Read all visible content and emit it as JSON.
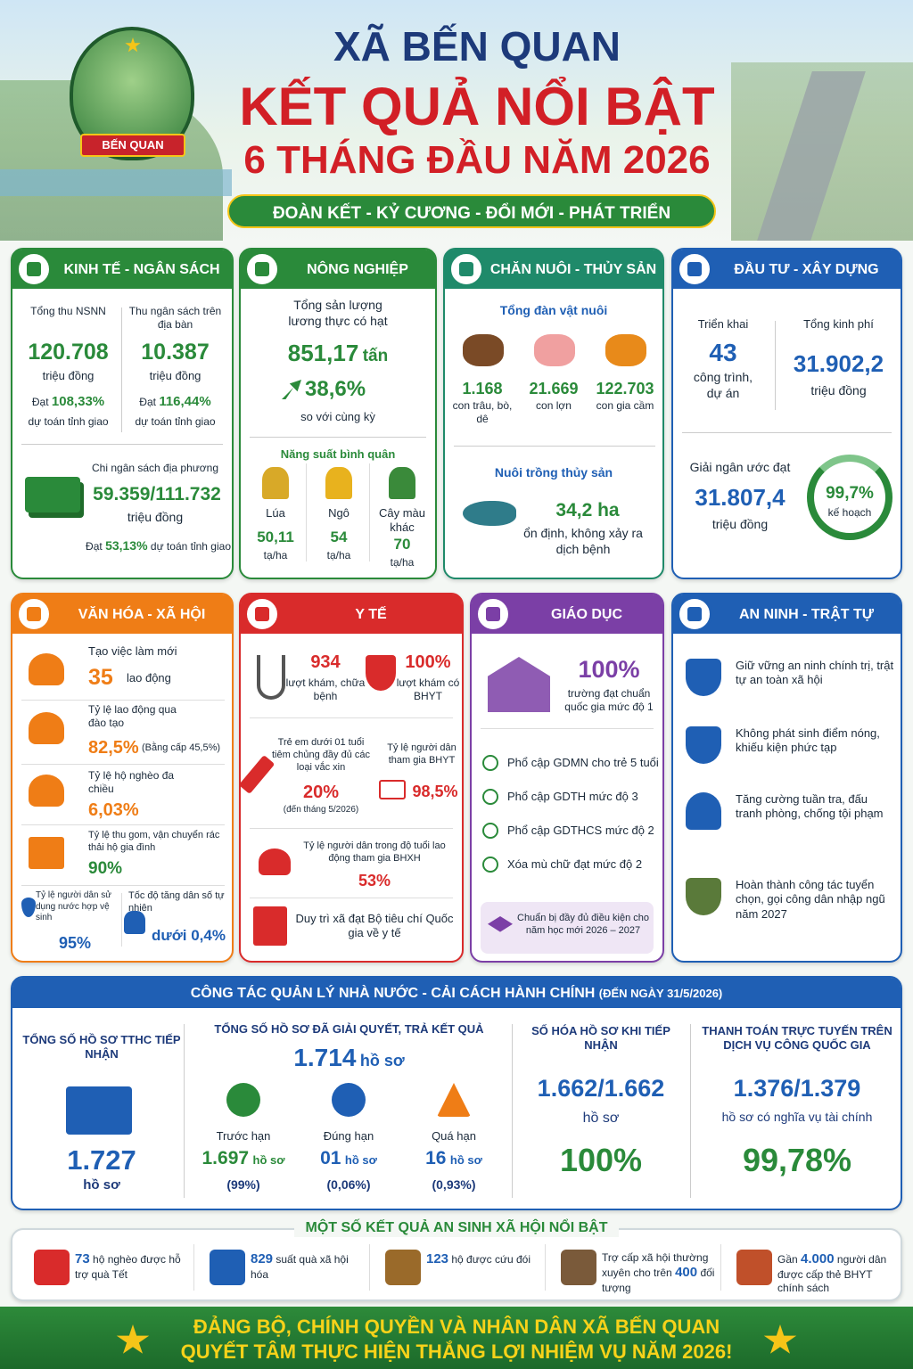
{
  "header": {
    "place": "XÃ BẾN QUAN",
    "title": "KẾT QUẢ NỔI BẬT",
    "subtitle": "6 THÁNG ĐẦU NĂM 2026",
    "slogan": "ĐOÀN KẾT - KỶ CƯƠNG - ĐỔI MỚI - PHÁT TRIỂN",
    "logo_text": "BẾN QUAN"
  },
  "kinh_te": {
    "title": "KINH TẾ - NGÂN SÁCH",
    "items": [
      {
        "label": "Tổng thu NSNN",
        "value": "120.708",
        "unit": "triệu đồng",
        "rate_prefix": "Đạt",
        "rate": "108,33%",
        "rate_note": "dự toán tỉnh giao"
      },
      {
        "label": "Thu ngân sách trên địa bàn",
        "value": "10.387",
        "unit": "triệu đồng",
        "rate_prefix": "Đạt",
        "rate": "116,44%",
        "rate_note": "dự toán tỉnh giao"
      },
      {
        "label": "Chi ngân sách địa phương",
        "value": "59.359/111.732",
        "unit": "triệu đồng",
        "rate_prefix": "Đạt",
        "rate": "53,13%",
        "rate_note": "dự toán tỉnh giao"
      }
    ]
  },
  "nong_nghiep": {
    "title": "NÔNG NGHIỆP",
    "label": "Tổng sản lượng lương thực có hạt",
    "value": "851,17",
    "unit": "tấn",
    "growth": "38,6%",
    "growth_note": "so với cùng kỳ",
    "yield_title": "Năng suất bình quân",
    "crops": [
      {
        "name": "Lúa",
        "value": "50,11",
        "unit": "tạ/ha"
      },
      {
        "name": "Ngô",
        "value": "54",
        "unit": "tạ/ha"
      },
      {
        "name": "Cây màu khác",
        "value": "70",
        "unit": "tạ/ha"
      }
    ]
  },
  "chan_nuoi": {
    "title": "CHĂN NUÔI - THỦY SẢN",
    "livestock_title": "Tổng đàn vật nuôi",
    "animals": [
      {
        "value": "1.168",
        "unit": "con trâu, bò, dê"
      },
      {
        "value": "21.669",
        "unit": "con lợn"
      },
      {
        "value": "122.703",
        "unit": "con gia cầm"
      }
    ],
    "aqua_title": "Nuôi trồng thủy sản",
    "aqua_value": "34,2 ha",
    "aqua_note": "ổn định, không xảy ra dịch bệnh"
  },
  "dau_tu": {
    "title": "ĐẦU TƯ - XÂY DỰNG",
    "projects_label": "Triển khai",
    "projects_value": "43",
    "projects_unit": "công trình, dự án",
    "cost_label": "Tổng kinh phí",
    "cost_value": "31.902,2",
    "cost_unit": "triệu đồng",
    "disburse_label": "Giải ngân ước đạt",
    "disburse_value": "31.807,4",
    "disburse_unit": "triệu đồng",
    "rate": "99,7%",
    "rate_note": "kế hoạch"
  },
  "van_hoa": {
    "title": "VĂN HÓA - XÃ HỘI",
    "items": [
      {
        "label": "Tạo việc làm mới",
        "value": "35",
        "note": "lao động"
      },
      {
        "label": "Tỷ lệ lao động qua đào tạo",
        "value": "82,5%",
        "note": "(Bằng cấp 45,5%)"
      },
      {
        "label": "Tỷ lệ hộ nghèo đa chiều",
        "value": "6,03%"
      },
      {
        "label": "Tỷ lệ thu gom, vận chuyển rác thải hộ gia đình",
        "value": "90%"
      },
      {
        "label": "Tỷ lệ người dân sử dụng nước hợp vệ sinh",
        "value": "95%"
      },
      {
        "label": "Tốc độ tăng dân số tự nhiên",
        "value": "dưới 0,4%"
      }
    ]
  },
  "y_te": {
    "title": "Y TẾ",
    "items": [
      {
        "value": "934",
        "note": "lượt khám, chữa bệnh"
      },
      {
        "value": "100%",
        "note": "lượt khám có BHYT"
      },
      {
        "label": "Trẻ em dưới 01 tuổi tiêm chủng đầy đủ các loại vắc xin",
        "value": "20%",
        "note": "(đến tháng 5/2026)"
      },
      {
        "label": "Tỷ lệ người dân tham gia BHYT",
        "value": "98,5%"
      },
      {
        "label": "Tỷ lệ người dân trong độ tuổi lao động tham gia BHXH",
        "value": "53%"
      }
    ],
    "maintain": "Duy trì xã đạt Bộ tiêu chí Quốc gia về y tế"
  },
  "giao_duc": {
    "title": "GIÁO DỤC",
    "value": "100%",
    "note": "trường đạt chuẩn quốc gia mức độ 1",
    "checks": [
      "Phổ cập GDMN cho trẻ 5 tuổi",
      "Phổ cập GDTH mức độ 3",
      "Phổ cập GDTHCS mức độ 2",
      "Xóa mù chữ đạt mức độ 2"
    ],
    "footer": "Chuẩn bị đầy đủ điều kiện cho năm học mới 2026 – 2027"
  },
  "an_ninh": {
    "title": "AN NINH - TRẬT TỰ",
    "items": [
      "Giữ vững an ninh chính trị, trật tự an toàn xã hội",
      "Không phát sinh điểm nóng, khiếu kiện phức tạp",
      "Tăng cường tuần tra, đấu tranh phòng, chống tội phạm",
      "Hoàn thành công tác tuyển chọn, gọi công dân nhập ngũ năm 2027"
    ]
  },
  "qlnn": {
    "title": "CÔNG TÁC QUẢN LÝ NHÀ NƯỚC - CẢI CÁCH HÀNH CHÍNH",
    "date_note": "(ĐẾN NGÀY 31/5/2026)",
    "received": {
      "label": "TỔNG SỐ HỒ SƠ TTHC TIẾP NHẬN",
      "value": "1.727",
      "unit": "hồ sơ"
    },
    "resolved": {
      "label": "TỔNG SỐ HỒ SƠ ĐÃ GIẢI QUYẾT, TRẢ KẾT QUẢ",
      "value": "1.714",
      "unit": "hồ sơ",
      "breakdown": [
        {
          "label": "Trước hạn",
          "value": "1.697",
          "unit": "hồ sơ",
          "pct": "(99%)"
        },
        {
          "label": "Đúng hạn",
          "value": "01",
          "unit": "hồ sơ",
          "pct": "(0,06%)"
        },
        {
          "label": "Quá hạn",
          "value": "16",
          "unit": "hồ sơ",
          "pct": "(0,93%)"
        }
      ]
    },
    "digitized": {
      "label": "SỐ HÓA HỒ SƠ KHI TIẾP NHẬN",
      "value": "1.662/1.662",
      "unit": "hồ sơ",
      "pct": "100%"
    },
    "payment": {
      "label": "THANH TOÁN TRỰC TUYẾN TRÊN DỊCH VỤ CÔNG QUỐC GIA",
      "value": "1.376/1.379",
      "unit": "hồ sơ có nghĩa vụ tài chính",
      "pct": "99,78%"
    }
  },
  "an_sinh": {
    "title": "MỘT SỐ KẾT QUẢ AN SINH XÃ HỘI NỔI BẬT",
    "items": [
      {
        "value": "73",
        "text": "hộ nghèo được hỗ trợ quà Tết"
      },
      {
        "value": "829",
        "text": "suất quà xã hội hóa"
      },
      {
        "value": "123",
        "text": "hộ được cứu đói"
      },
      {
        "pre": "Trợ cấp xã hội thường xuyên cho trên",
        "value": "400",
        "text": "đối tượng"
      },
      {
        "pre": "Gần",
        "value": "4.000",
        "text": "người dân được cấp thẻ BHYT chính sách"
      }
    ]
  },
  "footer": {
    "lines": [
      "ĐẢNG BỘ, CHÍNH QUYỀN VÀ NHÂN DÂN XÃ BẾN QUAN",
      "QUYẾT TÂM THỰC HIỆN THẮNG LỢI NHIỆM VỤ NĂM 2026!"
    ]
  }
}
